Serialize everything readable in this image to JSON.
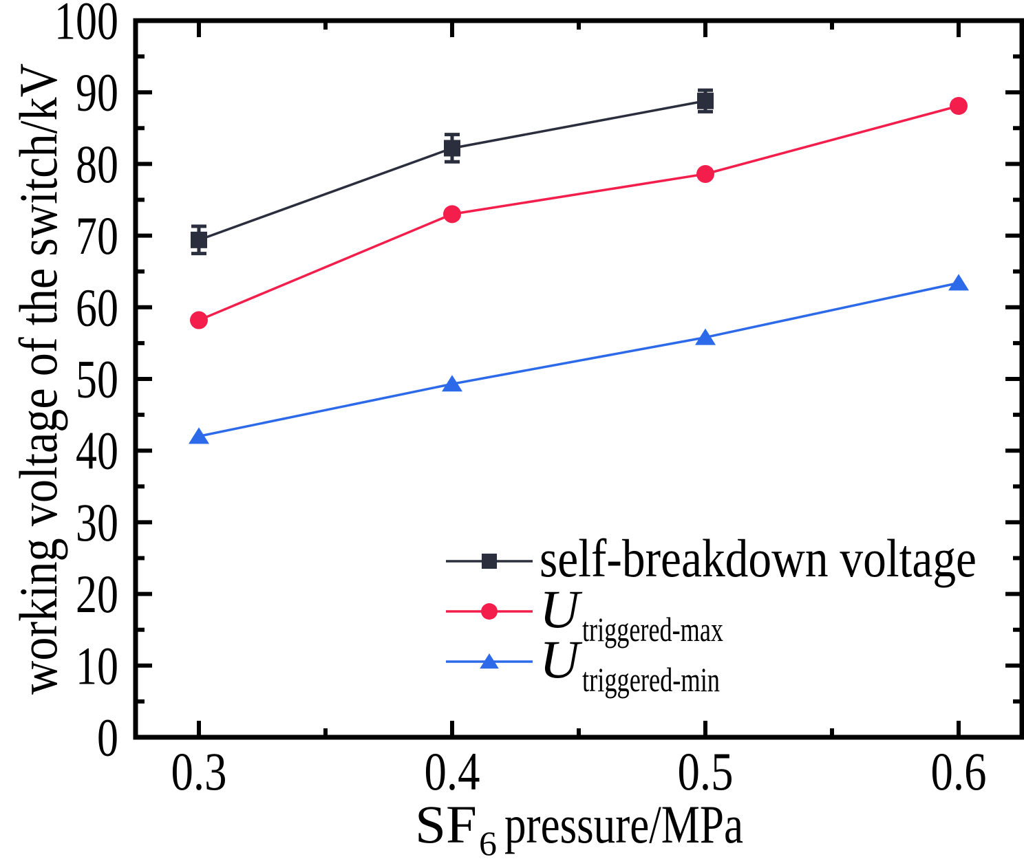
{
  "chart_data": {
    "type": "line",
    "title": "",
    "xlabel": {
      "prefix": "SF",
      "subscript": "6",
      "suffix": "pressure/MPa"
    },
    "ylabel": "working voltage of the switch/kV",
    "xlim": [
      0.275,
      0.625
    ],
    "ylim": [
      0,
      100
    ],
    "grid": false,
    "x_major_ticks": {
      "values": [
        0.3,
        0.4,
        0.5,
        0.6
      ],
      "labels": [
        "0.3",
        "0.4",
        "0.5",
        "0.6"
      ]
    },
    "x_minor_ticks": [
      0.35,
      0.45,
      0.55
    ],
    "y_major_ticks": {
      "values": [
        0,
        10,
        20,
        30,
        40,
        50,
        60,
        70,
        80,
        90,
        100
      ],
      "labels": [
        "0",
        "10",
        "20",
        "30",
        "40",
        "50",
        "60",
        "70",
        "80",
        "90",
        "100"
      ]
    },
    "y_minor_ticks": [
      5,
      15,
      25,
      35,
      45,
      55,
      65,
      75,
      85,
      95
    ],
    "legend_position": "inside-lower-right",
    "series": [
      {
        "name": "self-breakdown voltage",
        "marker": "square",
        "color": "#2b2e3d",
        "x": [
          0.3,
          0.4,
          0.5
        ],
        "y": [
          69.4,
          82.2,
          88.8
        ],
        "yerr": [
          1.9,
          1.9,
          1.5
        ],
        "legend_main": "self-breakdown voltage",
        "legend_main_italic": false,
        "legend_sub": ""
      },
      {
        "name": "U-triggered-max",
        "marker": "circle",
        "color": "#f31e4b",
        "x": [
          0.3,
          0.4,
          0.5,
          0.6
        ],
        "y": [
          58.2,
          73.0,
          78.6,
          88.1
        ],
        "yerr": [],
        "legend_main": "U",
        "legend_main_italic": true,
        "legend_sub": "triggered-max"
      },
      {
        "name": "U-triggered-min",
        "marker": "triangle",
        "color": "#2c6ae9",
        "x": [
          0.3,
          0.4,
          0.5,
          0.6
        ],
        "y": [
          42.0,
          49.3,
          55.8,
          63.4
        ],
        "yerr": [],
        "legend_main": "U",
        "legend_main_italic": true,
        "legend_sub": "triggered-min"
      }
    ],
    "axis_color": "#000000",
    "background_color": "#ffffff"
  }
}
